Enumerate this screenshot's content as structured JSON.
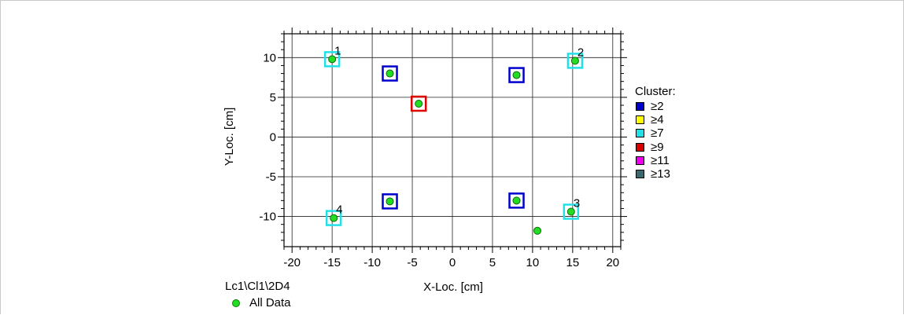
{
  "chart_data": {
    "type": "scatter",
    "xlabel": "X-Loc. [cm]",
    "ylabel": "Y-Loc. [cm]",
    "xlim": [
      -21,
      21
    ],
    "ylim": [
      -13.8,
      13
    ],
    "x_ticks": [
      -20,
      -15,
      -10,
      -5,
      0,
      5,
      10,
      15,
      20
    ],
    "y_ticks": [
      -10,
      -5,
      0,
      5,
      10
    ],
    "grid": true,
    "data_color": "#22dd22",
    "series": [
      {
        "name": "All Data",
        "points": [
          {
            "x": -15.0,
            "y": 9.8
          },
          {
            "x": 15.3,
            "y": 9.6
          },
          {
            "x": -7.8,
            "y": 8.0
          },
          {
            "x": 8.0,
            "y": 7.8
          },
          {
            "x": -4.2,
            "y": 4.2
          },
          {
            "x": -7.8,
            "y": -8.1
          },
          {
            "x": 8.0,
            "y": -8.0
          },
          {
            "x": -14.8,
            "y": -10.2
          },
          {
            "x": 14.8,
            "y": -9.4
          },
          {
            "x": 10.6,
            "y": -11.8
          }
        ]
      }
    ],
    "sensor_labels": [
      {
        "text": "1",
        "x": -15.0,
        "y": 9.8
      },
      {
        "text": "2",
        "x": 15.3,
        "y": 9.6
      },
      {
        "text": "3",
        "x": 14.8,
        "y": -9.4
      },
      {
        "text": "4",
        "x": -14.8,
        "y": -10.2
      }
    ],
    "clusters": [
      {
        "level": "≥7",
        "x": -15.0,
        "y": 9.8
      },
      {
        "level": "≥7",
        "x": 15.3,
        "y": 9.6
      },
      {
        "level": "≥2",
        "x": -7.8,
        "y": 8.0
      },
      {
        "level": "≥2",
        "x": 8.0,
        "y": 7.8
      },
      {
        "level": "≥9",
        "x": -4.2,
        "y": 4.2
      },
      {
        "level": "≥2",
        "x": -7.8,
        "y": -8.1
      },
      {
        "level": "≥2",
        "x": 8.0,
        "y": -8.0
      },
      {
        "level": "≥7",
        "x": -14.8,
        "y": -10.2
      },
      {
        "level": "≥7",
        "x": 14.8,
        "y": -9.4
      }
    ],
    "legend": {
      "title": "Cluster:",
      "items": [
        {
          "label": "≥2",
          "color": "#0000cc"
        },
        {
          "label": "≥4",
          "color": "#ffff00"
        },
        {
          "label": "≥7",
          "color": "#22e0e8"
        },
        {
          "label": "≥9",
          "color": "#dd0000"
        },
        {
          "label": "≥11",
          "color": "#ee00ee"
        },
        {
          "label": "≥13",
          "color": "#3a6a70"
        }
      ]
    },
    "source_label": "Lc1\\Cl1\\2D4",
    "data_legend_label": "All Data"
  }
}
